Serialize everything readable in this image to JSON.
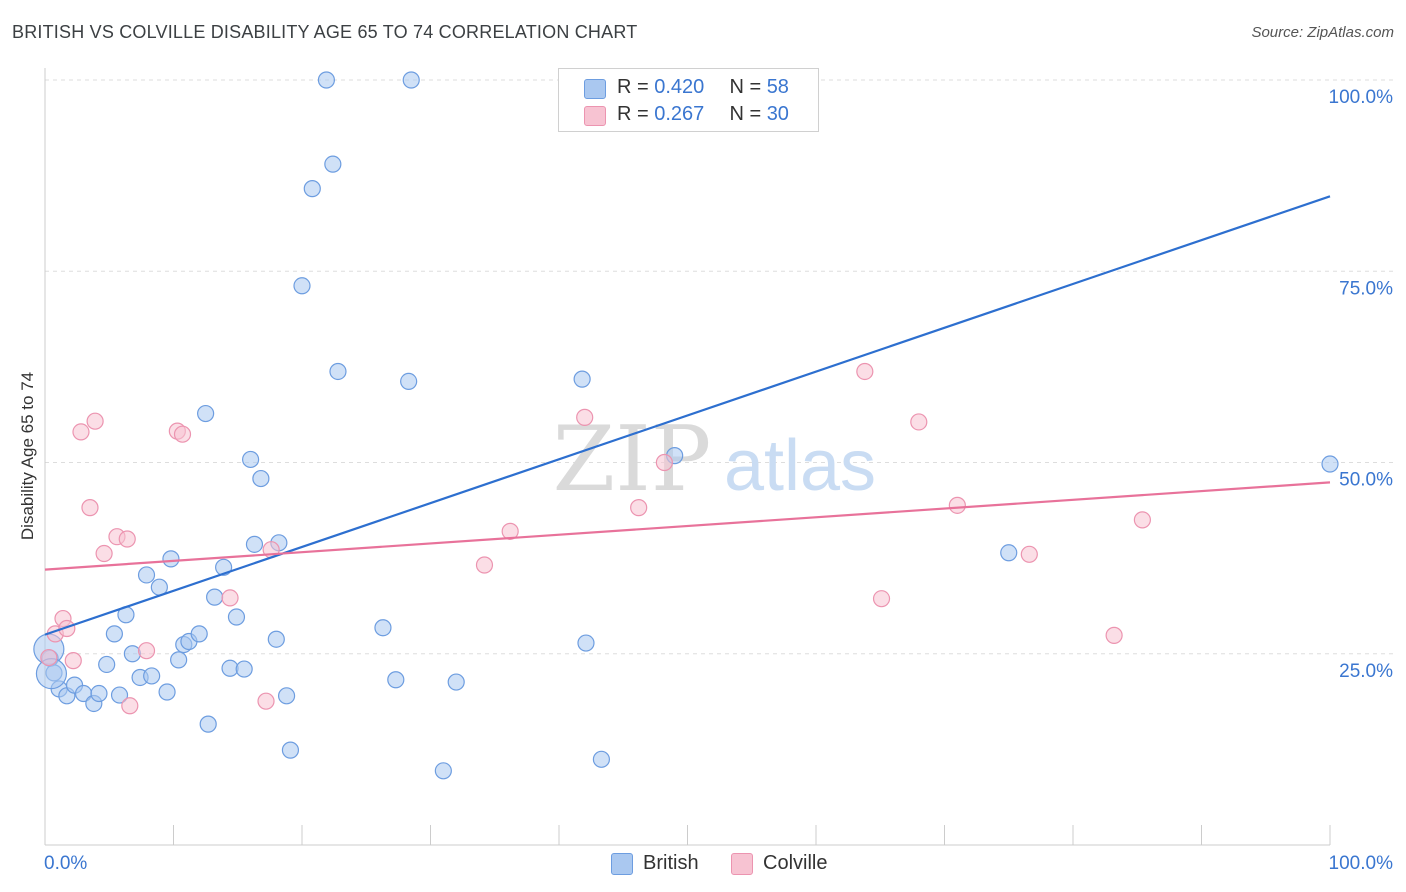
{
  "header": {
    "title": "BRITISH VS COLVILLE DISABILITY AGE 65 TO 74 CORRELATION CHART",
    "source": "Source: ZipAtlas.com"
  },
  "watermark": {
    "zip": "ZIP",
    "atlas": "atlas"
  },
  "legend_top": {
    "british": {
      "r_label": "R =",
      "r_value": "0.420",
      "n_label": "N =",
      "n_value": "58"
    },
    "colville": {
      "r_label": "R =",
      "r_value": "0.267",
      "n_label": "N =",
      "n_value": "30"
    }
  },
  "legend_bottom": {
    "british": "British",
    "colville": "Colville"
  },
  "colors": {
    "british_fill": "#aac8f0",
    "british_stroke": "#6d9de0",
    "british_line": "#2d6fcf",
    "colville_fill": "#f7c3d2",
    "colville_stroke": "#ec94b0",
    "colville_line": "#e8729a",
    "axis_label": "#3a76d0",
    "grid": "#dddddd"
  },
  "chart_data": {
    "type": "scatter",
    "title": "BRITISH VS COLVILLE DISABILITY AGE 65 TO 74 CORRELATION CHART",
    "xlabel": "",
    "ylabel": "Disability Age 65 to 74",
    "xlim": [
      0,
      100
    ],
    "ylim": [
      0,
      100
    ],
    "x_tick_labels": [
      "0.0%",
      "100.0%"
    ],
    "y_ticks": [
      25,
      50,
      75,
      100
    ],
    "y_tick_labels": [
      "25.0%",
      "50.0%",
      "75.0%",
      "100.0%"
    ],
    "grid": true,
    "series": [
      {
        "name": "British",
        "points": [
          [
            0.4,
            24.4
          ],
          [
            0.7,
            22.5
          ],
          [
            1.1,
            20.4
          ],
          [
            1.7,
            19.5
          ],
          [
            2.3,
            20.9
          ],
          [
            3.0,
            19.8
          ],
          [
            3.8,
            18.5
          ],
          [
            4.2,
            19.8
          ],
          [
            4.8,
            23.6
          ],
          [
            5.4,
            27.6
          ],
          [
            5.8,
            19.6
          ],
          [
            6.3,
            30.1
          ],
          [
            6.8,
            25.0
          ],
          [
            7.4,
            21.9
          ],
          [
            7.9,
            35.3
          ],
          [
            8.3,
            22.1
          ],
          [
            8.9,
            33.7
          ],
          [
            9.5,
            20.0
          ],
          [
            9.8,
            37.4
          ],
          [
            10.4,
            24.2
          ],
          [
            10.8,
            26.2
          ],
          [
            11.2,
            26.6
          ],
          [
            12.0,
            27.6
          ],
          [
            12.5,
            56.4
          ],
          [
            12.7,
            15.8
          ],
          [
            13.2,
            32.4
          ],
          [
            13.9,
            36.3
          ],
          [
            14.4,
            23.1
          ],
          [
            14.9,
            29.8
          ],
          [
            15.5,
            23.0
          ],
          [
            16.0,
            50.4
          ],
          [
            16.3,
            39.3
          ],
          [
            16.8,
            47.9
          ],
          [
            18.0,
            26.9
          ],
          [
            18.2,
            39.5
          ],
          [
            18.8,
            19.5
          ],
          [
            19.1,
            12.4
          ],
          [
            20.0,
            73.1
          ],
          [
            20.8,
            85.8
          ],
          [
            21.9,
            100.0
          ],
          [
            22.4,
            89.0
          ],
          [
            22.8,
            61.9
          ],
          [
            26.3,
            28.4
          ],
          [
            27.3,
            21.6
          ],
          [
            28.3,
            60.6
          ],
          [
            28.5,
            100.0
          ],
          [
            31.0,
            9.7
          ],
          [
            32.0,
            21.3
          ],
          [
            41.8,
            60.9
          ],
          [
            42.1,
            26.4
          ],
          [
            43.3,
            11.2
          ],
          [
            47.6,
            100.0
          ],
          [
            48.5,
            100.0
          ],
          [
            49.0,
            50.9
          ],
          [
            75.0,
            38.2
          ],
          [
            100.0,
            49.8
          ],
          [
            0.3,
            25.6
          ],
          [
            0.5,
            22.4
          ]
        ]
      },
      {
        "name": "Colville",
        "points": [
          [
            0.3,
            24.5
          ],
          [
            0.8,
            27.6
          ],
          [
            1.4,
            29.6
          ],
          [
            1.7,
            28.3
          ],
          [
            2.2,
            24.1
          ],
          [
            2.8,
            54.0
          ],
          [
            3.5,
            44.1
          ],
          [
            3.9,
            55.4
          ],
          [
            4.6,
            38.1
          ],
          [
            5.6,
            40.3
          ],
          [
            6.4,
            40.0
          ],
          [
            6.6,
            18.2
          ],
          [
            7.9,
            25.4
          ],
          [
            10.3,
            54.1
          ],
          [
            10.7,
            53.7
          ],
          [
            14.4,
            32.3
          ],
          [
            17.2,
            18.8
          ],
          [
            17.6,
            38.6
          ],
          [
            34.2,
            36.6
          ],
          [
            36.2,
            41.0
          ],
          [
            42.0,
            55.9
          ],
          [
            46.2,
            44.1
          ],
          [
            48.2,
            50.0
          ],
          [
            63.8,
            61.9
          ],
          [
            65.1,
            32.2
          ],
          [
            68.0,
            55.3
          ],
          [
            71.0,
            44.4
          ],
          [
            76.6,
            38.0
          ],
          [
            83.2,
            27.4
          ],
          [
            85.4,
            42.5
          ]
        ]
      }
    ],
    "trend_lines": [
      {
        "name": "British",
        "x": [
          0,
          100
        ],
        "y": [
          27.5,
          84.8
        ]
      },
      {
        "name": "Colville",
        "x": [
          0,
          100
        ],
        "y": [
          36.0,
          47.4
        ]
      }
    ]
  }
}
